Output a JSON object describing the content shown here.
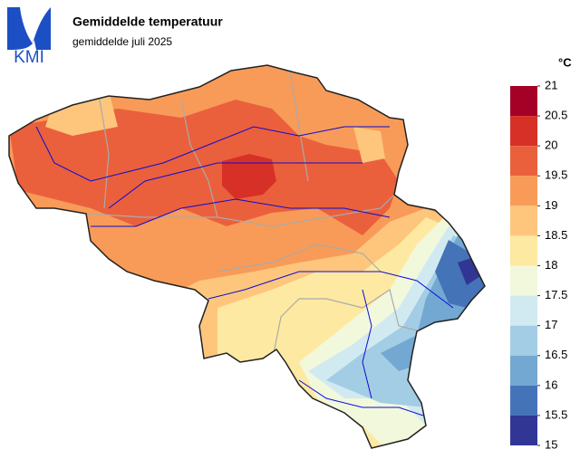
{
  "header": {
    "logo": "KMI",
    "title": "Gemiddelde temperatuur",
    "subtitle": "gemiddelde juli 2025"
  },
  "legend": {
    "unit": "°C",
    "ticks": [
      21,
      20.5,
      20,
      19.5,
      19,
      18.5,
      18,
      17.5,
      17,
      16.5,
      16,
      15.5,
      15
    ],
    "colors": [
      "#a50026",
      "#d73027",
      "#ea603c",
      "#f89b58",
      "#fdc67c",
      "#fee9a2",
      "#f2f8dc",
      "#d1eaf1",
      "#a3cde4",
      "#72a8d2",
      "#4573b8",
      "#313695"
    ]
  }
}
